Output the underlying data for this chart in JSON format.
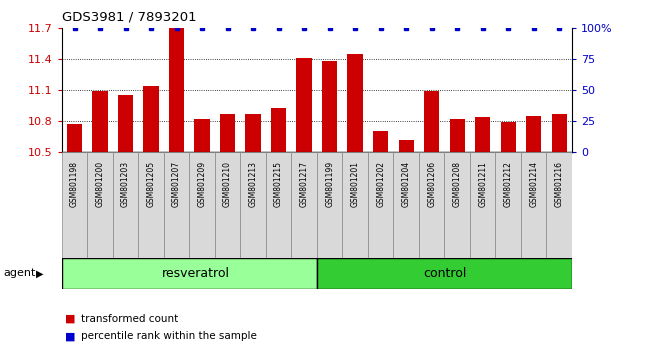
{
  "title": "GDS3981 / 7893201",
  "samples": [
    "GSM801198",
    "GSM801200",
    "GSM801203",
    "GSM801205",
    "GSM801207",
    "GSM801209",
    "GSM801210",
    "GSM801213",
    "GSM801215",
    "GSM801217",
    "GSM801199",
    "GSM801201",
    "GSM801202",
    "GSM801204",
    "GSM801206",
    "GSM801208",
    "GSM801211",
    "GSM801212",
    "GSM801214",
    "GSM801216"
  ],
  "transformed_counts": [
    10.77,
    11.09,
    11.05,
    11.14,
    11.7,
    10.82,
    10.87,
    10.87,
    10.93,
    11.41,
    11.38,
    11.45,
    10.71,
    10.62,
    11.09,
    10.82,
    10.84,
    10.79,
    10.85,
    10.87
  ],
  "percentile_ranks": [
    100,
    100,
    100,
    100,
    100,
    100,
    100,
    100,
    100,
    100,
    100,
    100,
    100,
    100,
    100,
    100,
    100,
    100,
    100,
    100
  ],
  "n_resveratrol": 10,
  "n_control": 10,
  "ylim_left": [
    10.5,
    11.7
  ],
  "ylim_right": [
    0,
    100
  ],
  "bar_color": "#cc0000",
  "dot_color": "#0000cc",
  "resveratrol_color": "#99ff99",
  "control_color": "#33cc33",
  "agent_label": "agent",
  "legend_bar": "transformed count",
  "legend_dot": "percentile rank within the sample",
  "gridline_values": [
    10.8,
    11.1,
    11.4
  ],
  "left_tick_values": [
    10.5,
    10.8,
    11.1,
    11.4,
    11.7
  ],
  "right_tick_values": [
    0,
    25,
    50,
    75,
    100
  ],
  "right_tick_labels": [
    "0",
    "25",
    "50",
    "75",
    "100%"
  ],
  "bar_width": 0.6
}
